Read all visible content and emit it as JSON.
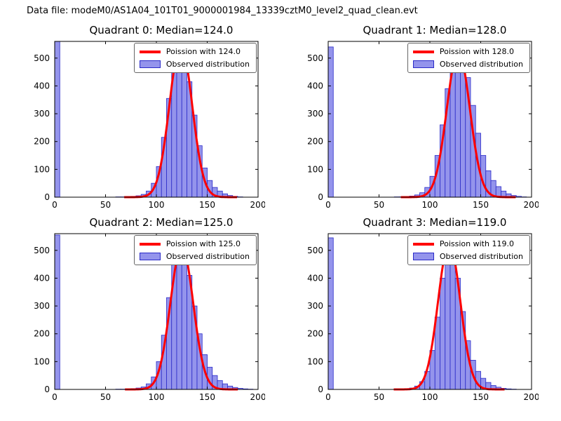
{
  "figure": {
    "title": "Data file: modeM0/AS1A04_101T01_9000001984_13339cztM0_level2_quad_clean.evt"
  },
  "colors": {
    "hist_fill": "#9494ec",
    "hist_edge": "#2a2ac8",
    "curve": "#ff0000",
    "axis": "#000000"
  },
  "chart_data": [
    {
      "type": "bar",
      "title": "Quadrant 0: Median=124.0",
      "median": 124.0,
      "legend": [
        "Poission with 124.0",
        "Observed distribution"
      ],
      "xlim": [
        0,
        200
      ],
      "ylim": [
        0,
        560
      ],
      "xticks": [
        0,
        50,
        100,
        150,
        200
      ],
      "yticks": [
        0,
        100,
        200,
        300,
        400,
        500
      ],
      "bins_start": 0,
      "bin_width": 5,
      "counts": [
        560,
        0,
        0,
        0,
        0,
        0,
        0,
        0,
        0,
        0,
        0,
        0,
        1,
        1,
        2,
        3,
        5,
        10,
        22,
        50,
        110,
        215,
        355,
        470,
        540,
        515,
        415,
        295,
        185,
        105,
        60,
        35,
        22,
        12,
        6,
        3,
        1,
        0,
        0,
        0
      ],
      "poisson": {
        "lambda": 124.0,
        "peak": 550
      }
    },
    {
      "type": "bar",
      "title": "Quadrant 1: Median=128.0",
      "median": 128.0,
      "legend": [
        "Poission with 128.0",
        "Observed distribution"
      ],
      "xlim": [
        0,
        200
      ],
      "ylim": [
        0,
        560
      ],
      "xticks": [
        0,
        50,
        100,
        150,
        200
      ],
      "yticks": [
        0,
        100,
        200,
        300,
        400,
        500
      ],
      "bins_start": 0,
      "bin_width": 5,
      "counts": [
        540,
        0,
        0,
        0,
        0,
        0,
        0,
        0,
        0,
        0,
        0,
        0,
        0,
        1,
        1,
        2,
        4,
        8,
        16,
        35,
        75,
        150,
        260,
        390,
        480,
        530,
        505,
        430,
        330,
        230,
        150,
        95,
        60,
        38,
        22,
        12,
        6,
        3,
        1,
        0
      ],
      "poisson": {
        "lambda": 128.0,
        "peak": 525
      }
    },
    {
      "type": "bar",
      "title": "Quadrant 2: Median=125.0",
      "median": 125.0,
      "legend": [
        "Poission with 125.0",
        "Observed distribution"
      ],
      "xlim": [
        0,
        200
      ],
      "ylim": [
        0,
        560
      ],
      "xticks": [
        0,
        50,
        100,
        150,
        200
      ],
      "yticks": [
        0,
        100,
        200,
        300,
        400,
        500
      ],
      "bins_start": 0,
      "bin_width": 5,
      "counts": [
        555,
        0,
        0,
        0,
        0,
        0,
        0,
        0,
        0,
        0,
        0,
        0,
        1,
        1,
        2,
        3,
        5,
        9,
        20,
        45,
        100,
        195,
        330,
        450,
        520,
        500,
        410,
        300,
        200,
        125,
        80,
        50,
        32,
        20,
        12,
        7,
        4,
        2,
        1,
        0
      ],
      "poisson": {
        "lambda": 125.0,
        "peak": 515
      }
    },
    {
      "type": "bar",
      "title": "Quadrant 3: Median=119.0",
      "median": 119.0,
      "legend": [
        "Poission with 119.0",
        "Observed distribution"
      ],
      "xlim": [
        0,
        200
      ],
      "ylim": [
        0,
        560
      ],
      "xticks": [
        0,
        50,
        100,
        150,
        200
      ],
      "yticks": [
        0,
        100,
        200,
        300,
        400,
        500
      ],
      "bins_start": 0,
      "bin_width": 5,
      "counts": [
        545,
        0,
        0,
        0,
        0,
        0,
        0,
        0,
        0,
        0,
        0,
        0,
        0,
        1,
        1,
        2,
        5,
        12,
        28,
        65,
        140,
        260,
        400,
        530,
        505,
        400,
        280,
        175,
        105,
        65,
        40,
        25,
        14,
        8,
        4,
        2,
        1,
        0,
        0,
        0
      ],
      "poisson": {
        "lambda": 119.0,
        "peak": 525
      }
    }
  ]
}
